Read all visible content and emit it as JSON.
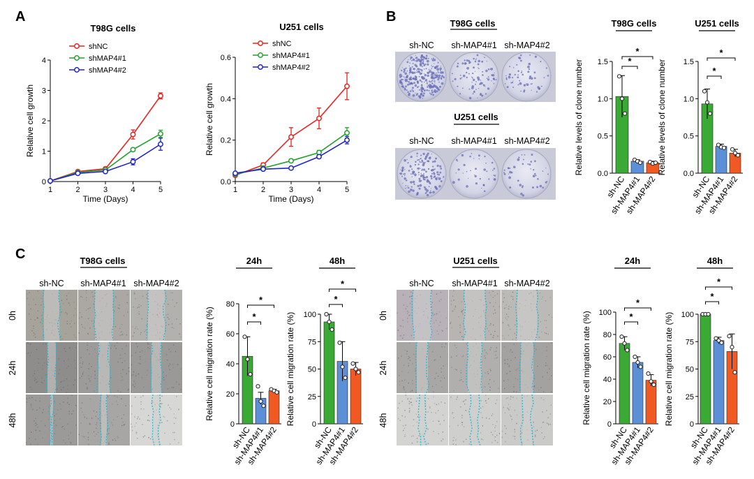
{
  "panels": {
    "A": "A",
    "B": "B",
    "C": "C"
  },
  "colors": {
    "green": "#3aaa35",
    "blue": "#5b8fd6",
    "orange": "#f05a22",
    "red": "#e8221f",
    "lgreen": "#22a12b",
    "lblue": "#1f24c7",
    "dish": "#d9dbea",
    "dot": "#6a6fb8",
    "wound": "#2bb8d8"
  },
  "photos": {
    "B": {
      "title_t98g": "T98G cells",
      "title_u251": "U251 cells",
      "cols": [
        "sh-NC",
        "sh-MAP4#1",
        "sh-MAP4#2"
      ]
    },
    "C_t98g": {
      "title": "T98G cells",
      "cols": [
        "sh-NC",
        "sh-MAP4#1",
        "sh-MAP4#2"
      ],
      "rows": [
        "0h",
        "24h",
        "48h"
      ]
    },
    "C_u251": {
      "title": "U251 cells",
      "cols": [
        "sh-NC",
        "sh-MAP4#1",
        "sh-MAP4#2"
      ],
      "rows": [
        "0h",
        "24h",
        "48h"
      ]
    }
  },
  "chart_data": [
    {
      "id": "A1",
      "type": "line",
      "title": "T98G cells",
      "xlabel": "Time (Days)",
      "ylabel": "Relative cell growth",
      "x": [
        1,
        2,
        3,
        4,
        5
      ],
      "xlim": [
        1,
        5
      ],
      "ylim": [
        0,
        4
      ],
      "yticks": [
        "0",
        "1",
        "2",
        "3",
        "4"
      ],
      "series": [
        {
          "name": "shNC",
          "color": "#e8221f",
          "values": [
            0.02,
            0.33,
            0.42,
            1.55,
            2.82
          ],
          "err": [
            0.02,
            0.05,
            0.05,
            0.15,
            0.1
          ]
        },
        {
          "name": "shMAP4#1",
          "color": "#22a12b",
          "values": [
            0.02,
            0.3,
            0.38,
            1.05,
            1.57
          ],
          "err": [
            0.02,
            0.03,
            0.03,
            0.05,
            0.12
          ]
        },
        {
          "name": "shMAP4#2",
          "color": "#1f24c7",
          "values": [
            0.02,
            0.27,
            0.33,
            0.65,
            1.23
          ],
          "err": [
            0.02,
            0.03,
            0.03,
            0.1,
            0.2
          ]
        }
      ]
    },
    {
      "id": "A2",
      "type": "line",
      "title": "U251 cells",
      "xlabel": "Time (Days)",
      "ylabel": "Relative cell growth",
      "x": [
        1,
        2,
        3,
        4,
        5
      ],
      "xlim": [
        1,
        5
      ],
      "ylim": [
        0,
        0.6
      ],
      "yticks": [
        "0.0",
        "0.2",
        "0.4",
        "0.6"
      ],
      "series": [
        {
          "name": "shNC",
          "color": "#e8221f",
          "values": [
            0.03,
            0.08,
            0.215,
            0.305,
            0.46
          ],
          "err": [
            0.005,
            0.01,
            0.045,
            0.05,
            0.065
          ]
        },
        {
          "name": "shMAP4#1",
          "color": "#22a12b",
          "values": [
            0.035,
            0.065,
            0.1,
            0.14,
            0.235
          ],
          "err": [
            0.005,
            0.005,
            0.008,
            0.01,
            0.025
          ]
        },
        {
          "name": "shMAP4#2",
          "color": "#1f24c7",
          "values": [
            0.04,
            0.06,
            0.065,
            0.12,
            0.2
          ],
          "err": [
            0.005,
            0.005,
            0.005,
            0.008,
            0.018
          ]
        }
      ]
    },
    {
      "id": "B1",
      "type": "bar",
      "title": "T98G cells",
      "ylabel": "Relative levels of clone number",
      "categories": [
        "sh-NC",
        "sh-MAP4#1",
        "sh-MAP4#2"
      ],
      "values": [
        1.03,
        0.16,
        0.14
      ],
      "err": [
        0.28,
        0.02,
        0.02
      ],
      "points": [
        [
          1.3,
          1.0,
          0.8
        ],
        [
          0.18,
          0.16,
          0.14
        ],
        [
          0.15,
          0.13,
          0.14
        ]
      ],
      "ylim": [
        0,
        1.5
      ],
      "yticks": [
        "0.0",
        "0.5",
        "1.0",
        "1.5"
      ],
      "sig": [
        "*",
        "*"
      ]
    },
    {
      "id": "B2",
      "type": "bar",
      "title": "U251 cells",
      "ylabel": "Relative levels of clone number",
      "categories": [
        "sh-NC",
        "sh-MAP4#1",
        "sh-MAP4#2"
      ],
      "values": [
        0.93,
        0.36,
        0.27
      ],
      "err": [
        0.2,
        0.03,
        0.05
      ],
      "points": [
        [
          1.1,
          0.95,
          0.8
        ],
        [
          0.38,
          0.35,
          0.34
        ],
        [
          0.32,
          0.27,
          0.24
        ]
      ],
      "ylim": [
        0,
        1.5
      ],
      "yticks": [
        "0.0",
        "0.5",
        "1.0",
        "1.5"
      ],
      "sig": [
        "*",
        "*"
      ]
    },
    {
      "id": "C1",
      "type": "bar",
      "title": "24h",
      "ylabel": "Relative cell migration rate (%)",
      "categories": [
        "sh-NC",
        "sh-MAP4#1",
        "sh-MAP4#2"
      ],
      "values": [
        45,
        17,
        22
      ],
      "err": [
        13,
        4,
        1
      ],
      "points": [
        [
          58,
          43,
          33
        ],
        [
          25,
          15,
          12
        ],
        [
          23,
          22,
          21
        ]
      ],
      "ylim": [
        0,
        80
      ],
      "yticks": [
        "0",
        "20",
        "40",
        "60",
        "80"
      ],
      "sig": [
        "*",
        "*"
      ]
    },
    {
      "id": "C2",
      "type": "bar",
      "title": "48h",
      "ylabel": "Relative cell migration rate (%)",
      "categories": [
        "sh-NC",
        "sh-MAP4#1",
        "sh-MAP4#2"
      ],
      "values": [
        93,
        57,
        50
      ],
      "err": [
        7,
        18,
        6
      ],
      "points": [
        [
          100,
          93,
          86
        ],
        [
          74,
          52,
          42
        ],
        [
          55,
          50,
          47
        ]
      ],
      "ylim": [
        0,
        100
      ],
      "yticks": [
        "0",
        "25",
        "50",
        "75",
        "100"
      ],
      "sig": [
        "*",
        "*"
      ]
    },
    {
      "id": "C3",
      "type": "bar",
      "title": "24h",
      "ylabel": "Relative cell migration rate (%)",
      "categories": [
        "sh-NC",
        "sh-MAP4#1",
        "sh-MAP4#2"
      ],
      "values": [
        72,
        55,
        39
      ],
      "err": [
        6,
        5,
        5
      ],
      "points": [
        [
          78,
          72,
          66
        ],
        [
          60,
          55,
          51
        ],
        [
          45,
          38,
          35
        ]
      ],
      "ylim": [
        0,
        100
      ],
      "yticks": [
        "0",
        "20",
        "40",
        "60",
        "80",
        "100"
      ],
      "sig": [
        "*",
        "*"
      ]
    },
    {
      "id": "C4",
      "type": "bar",
      "title": "48h",
      "ylabel": "Relative cell migration rate (%)",
      "categories": [
        "sh-NC",
        "sh-MAP4#1",
        "sh-MAP4#2"
      ],
      "values": [
        100,
        76,
        66
      ],
      "err": [
        0,
        3,
        16
      ],
      "points": [
        [
          100,
          100,
          100
        ],
        [
          78,
          76,
          74
        ],
        [
          80,
          70,
          47
        ]
      ],
      "ylim": [
        0,
        100
      ],
      "yticks": [
        "0",
        "25",
        "50",
        "75",
        "100"
      ],
      "sig": [
        "*",
        "*"
      ]
    }
  ]
}
